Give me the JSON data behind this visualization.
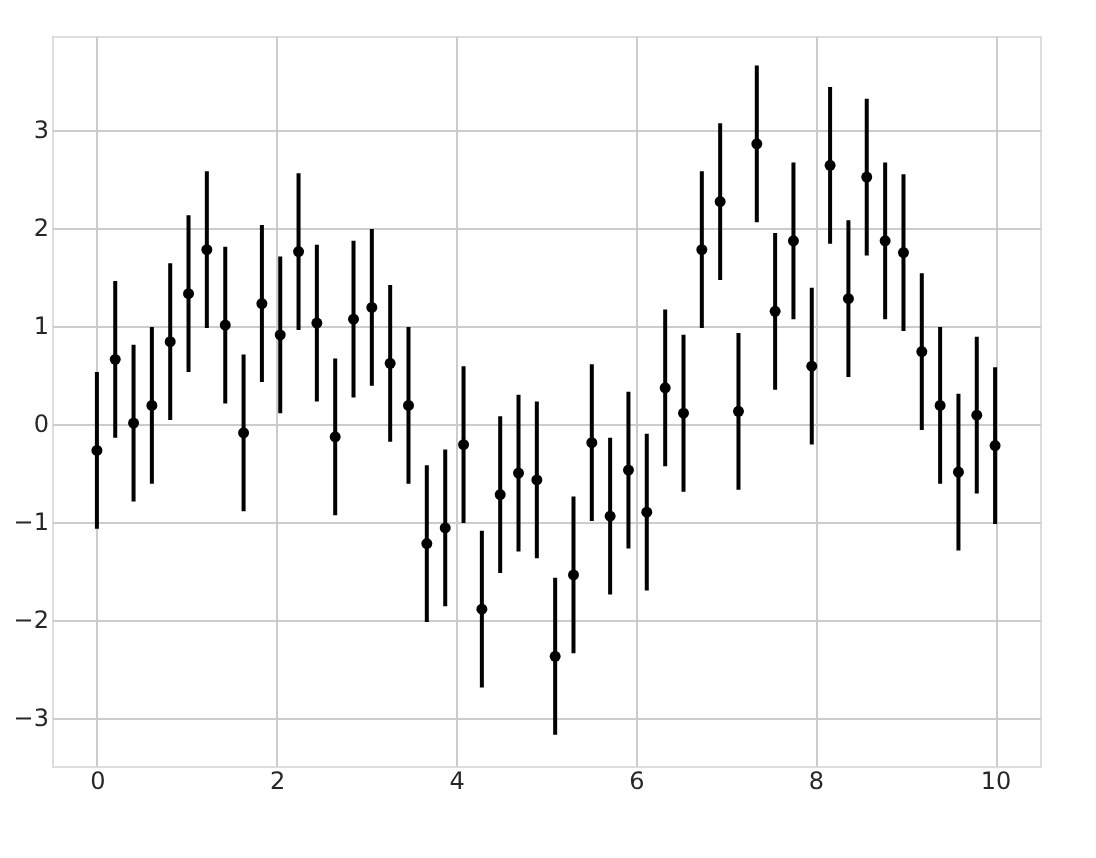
{
  "chart_data": {
    "type": "scatter",
    "x": [
      0.0,
      0.204,
      0.408,
      0.612,
      0.816,
      1.02,
      1.224,
      1.429,
      1.633,
      1.837,
      2.041,
      2.245,
      2.449,
      2.653,
      2.857,
      3.061,
      3.265,
      3.469,
      3.673,
      3.878,
      4.082,
      4.286,
      4.49,
      4.694,
      4.898,
      5.102,
      5.306,
      5.51,
      5.714,
      5.918,
      6.122,
      6.327,
      6.531,
      6.735,
      6.939,
      7.143,
      7.347,
      7.551,
      7.755,
      7.959,
      8.163,
      8.367,
      8.571,
      8.776,
      8.98,
      9.184,
      9.388,
      9.592,
      9.796,
      10.0
    ],
    "series": [
      {
        "color": "#000000",
        "values": [
          -0.28,
          0.65,
          0.0,
          0.18,
          0.83,
          1.32,
          1.77,
          1.0,
          -0.1,
          1.22,
          0.9,
          1.75,
          1.02,
          -0.14,
          1.06,
          1.18,
          0.61,
          0.18,
          -1.23,
          -1.07,
          -0.22,
          -1.9,
          -0.73,
          -0.51,
          -0.58,
          -2.38,
          -1.55,
          -0.2,
          -0.95,
          -0.48,
          -0.91,
          0.36,
          0.1,
          1.77,
          2.26,
          0.12,
          2.85,
          1.14,
          1.86,
          0.58,
          2.63,
          1.27,
          2.51,
          1.86,
          1.74,
          0.73,
          0.18,
          -0.5,
          0.08,
          -0.23
        ],
        "errors": [
          0.8,
          0.8,
          0.8,
          0.8,
          0.8,
          0.8,
          0.8,
          0.8,
          0.8,
          0.8,
          0.8,
          0.8,
          0.8,
          0.8,
          0.8,
          0.8,
          0.8,
          0.8,
          0.8,
          0.8,
          0.8,
          0.8,
          0.8,
          0.8,
          0.8,
          0.8,
          0.8,
          0.8,
          0.8,
          0.8,
          0.8,
          0.8,
          0.8,
          0.8,
          0.8,
          0.8,
          0.8,
          0.8,
          0.8,
          0.8,
          0.8,
          0.8,
          0.8,
          0.8,
          0.8,
          0.8,
          0.8,
          0.8,
          0.8,
          0.8
        ]
      }
    ],
    "xlim": [
      -0.5,
      10.5
    ],
    "xticks": [
      0,
      2,
      4,
      6,
      8,
      10
    ],
    "ylim": [
      -3.5,
      3.95
    ],
    "yticks": [
      -3,
      -2,
      -1,
      0,
      1,
      2,
      3
    ],
    "grid": true,
    "marker": "circle"
  }
}
